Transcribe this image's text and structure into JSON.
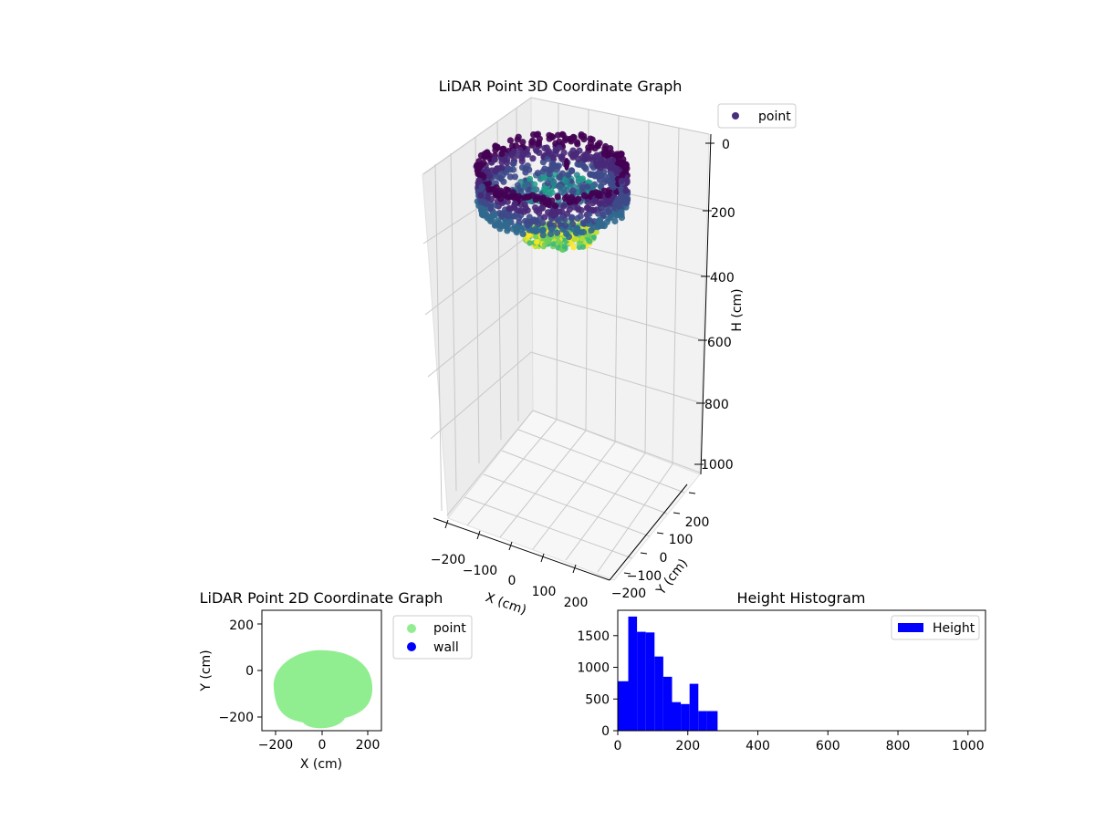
{
  "chart_data": [
    {
      "type": "scatter",
      "projection": "3d",
      "title": "LiDAR Point 3D Coordinate Graph",
      "xlabel": "X (cm)",
      "ylabel": "Y (cm)",
      "zlabel": "H (cm)",
      "x_ticks": [
        -200,
        -100,
        0,
        100,
        200
      ],
      "y_ticks": [
        -200,
        -100,
        0,
        100,
        200
      ],
      "z_ticks": [
        0,
        200,
        400,
        600,
        800,
        1000
      ],
      "x_tick_labels": [
        "−200",
        "−100",
        "0",
        "100",
        "200"
      ],
      "y_tick_labels": [
        "−200",
        "−100",
        "0",
        "100",
        "200"
      ],
      "z_tick_labels": [
        "0",
        "200",
        "400",
        "600",
        "800",
        "1000"
      ],
      "zlim": [
        1000,
        0
      ],
      "legend": [
        "point"
      ],
      "legend_position": "top-right",
      "colormap": "viridis",
      "description_shape": "ring of points, radius ~200 cm, heights 0-300 cm"
    },
    {
      "type": "scatter",
      "title": "LiDAR Point 2D Coordinate Graph",
      "xlabel": "X (cm)",
      "ylabel": "Y (cm)",
      "xlim": [
        -260,
        260
      ],
      "ylim": [
        -260,
        260
      ],
      "x_ticks": [
        -200,
        0,
        200
      ],
      "y_ticks": [
        -200,
        0,
        200
      ],
      "x_tick_labels": [
        "−200",
        "0",
        "200"
      ],
      "y_tick_labels": [
        "−200",
        "0",
        "200"
      ],
      "series": [
        {
          "name": "point",
          "color": "#90ee90"
        },
        {
          "name": "wall",
          "color": "#0000ff"
        }
      ],
      "legend_position": "outside-right"
    },
    {
      "type": "bar",
      "title": "Height Histogram",
      "xlim": [
        0,
        1050
      ],
      "ylim": [
        0,
        1900
      ],
      "x_ticks": [
        0,
        200,
        400,
        600,
        800,
        1000
      ],
      "y_ticks": [
        0,
        500,
        1000,
        1500
      ],
      "bin_edges": [
        0,
        30,
        55,
        80,
        105,
        130,
        155,
        180,
        205,
        230,
        255,
        285
      ],
      "values": [
        780,
        1800,
        1560,
        1550,
        1170,
        850,
        450,
        420,
        740,
        310,
        310
      ],
      "series": [
        {
          "name": "Height",
          "color": "#0000ff"
        }
      ],
      "legend_position": "top-right"
    }
  ]
}
